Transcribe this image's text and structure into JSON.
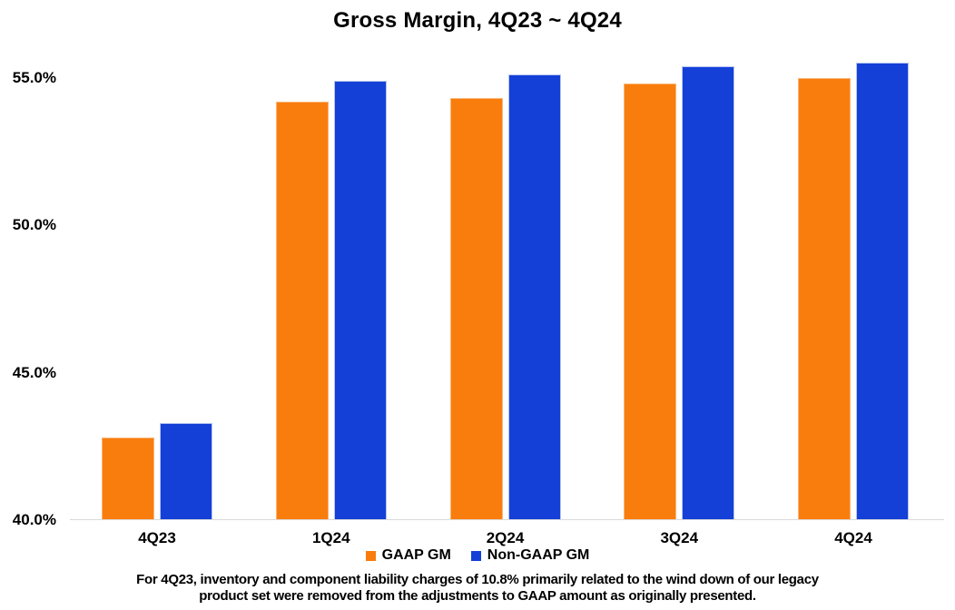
{
  "chart_data": {
    "type": "bar",
    "title": "Gross Margin, 4Q23 ~ 4Q24",
    "categories": [
      "4Q23",
      "1Q24",
      "2Q24",
      "3Q24",
      "4Q24"
    ],
    "series": [
      {
        "name": "GAAP GM",
        "color": "#F97D0D",
        "edge_color": "#FBB577",
        "values": [
          42.8,
          54.2,
          54.3,
          54.8,
          55.0
        ]
      },
      {
        "name": "Non-GAAP GM",
        "color": "#1440D8",
        "edge_color": "#B7C6F0",
        "values": [
          43.3,
          54.9,
          55.1,
          55.4,
          55.5
        ]
      }
    ],
    "ylabel": "",
    "xlabel": "",
    "ylim": [
      40,
      56
    ],
    "yticks": [
      {
        "value": 40,
        "label": "40.0%"
      },
      {
        "value": 45,
        "label": "45.0%"
      },
      {
        "value": 50,
        "label": "50.0%"
      },
      {
        "value": 55,
        "label": "55.0%"
      }
    ],
    "grid": false,
    "legend_position": "bottom",
    "axis_line_color": "#d9d9d9"
  },
  "footnote": {
    "line1": "For 4Q23, inventory and component liability charges of 10.8% primarily related to the wind down of our legacy",
    "line2": "product set were removed from the adjustments to GAAP amount as originally presented."
  }
}
